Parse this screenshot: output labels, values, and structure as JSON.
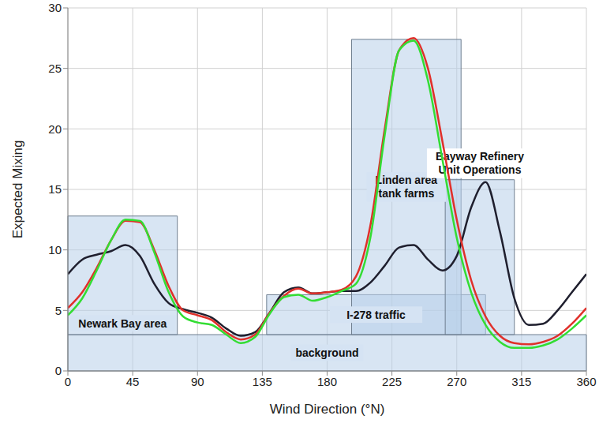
{
  "chart_data": {
    "type": "line",
    "x_label": "Wind Direction (°N)",
    "y_label": "Expected Mixing",
    "x": [
      0,
      10,
      20,
      30,
      40,
      50,
      60,
      70,
      80,
      90,
      100,
      110,
      120,
      130,
      140,
      150,
      160,
      170,
      180,
      190,
      200,
      210,
      220,
      230,
      240,
      250,
      260,
      270,
      280,
      290,
      300,
      310,
      320,
      330,
      340,
      350,
      360
    ],
    "xlim": [
      0,
      360
    ],
    "xticks": [
      0,
      45,
      90,
      135,
      180,
      225,
      270,
      315,
      360
    ],
    "ylim": [
      0,
      30
    ],
    "yticks": [
      0,
      5,
      10,
      15,
      20,
      25,
      30
    ],
    "grid": true,
    "series": [
      {
        "color": "#1f1f2e",
        "values": [
          8,
          9.2,
          9.6,
          9.9,
          10.4,
          9.5,
          7.2,
          5.6,
          5.1,
          4.8,
          4.4,
          3.5,
          2.9,
          3.2,
          4.8,
          6.5,
          6.9,
          6.4,
          6.5,
          6.6,
          6.6,
          7.3,
          8.7,
          10.2,
          10.4,
          9.2,
          8.3,
          9.5,
          13.5,
          15.6,
          11.5,
          6,
          3.8,
          3.9,
          5,
          6.5,
          8
        ]
      },
      {
        "color": "#e0302a",
        "values": [
          5.2,
          6.5,
          8.5,
          10.8,
          12.4,
          12.3,
          10,
          7,
          5,
          4.6,
          4.2,
          3.2,
          2.6,
          3,
          4.8,
          6.2,
          6.8,
          6.4,
          6.5,
          6.7,
          7.8,
          12,
          20,
          26.5,
          27.5,
          25,
          19,
          12.5,
          7.5,
          4.5,
          2.9,
          2.3,
          2.2,
          2.4,
          2.9,
          3.9,
          5.2
        ]
      },
      {
        "color": "#33dd33",
        "values": [
          4.6,
          6,
          8.3,
          10.8,
          12.5,
          12.4,
          9.8,
          6.5,
          4.5,
          4,
          3.8,
          3,
          2.3,
          2.8,
          4.7,
          6.1,
          6.3,
          5.8,
          6.1,
          6.6,
          7.2,
          11,
          19.5,
          26.5,
          27.3,
          24,
          17.5,
          11,
          6.5,
          3.8,
          2.4,
          1.9,
          1.9,
          2.1,
          2.6,
          3.5,
          4.6
        ]
      }
    ],
    "annotations": [
      {
        "text": "background",
        "x1": 0,
        "x2": 360,
        "y1": 0,
        "y2": 3
      },
      {
        "text": "I-278 traffic",
        "x1": 138,
        "x2": 290,
        "y1": 3,
        "y2": 6.3
      },
      {
        "text": "Newark Bay area",
        "x1": 0,
        "x2": 76,
        "y1": 3,
        "y2": 12.8
      },
      {
        "text": "Linden area tank farms",
        "x1": 197,
        "x2": 273,
        "y1": 3,
        "y2": 27.4
      },
      {
        "text": "Bayway Refinery Unit Operations",
        "x1": 262,
        "x2": 310,
        "y1": 3,
        "y2": 15.8
      }
    ]
  }
}
